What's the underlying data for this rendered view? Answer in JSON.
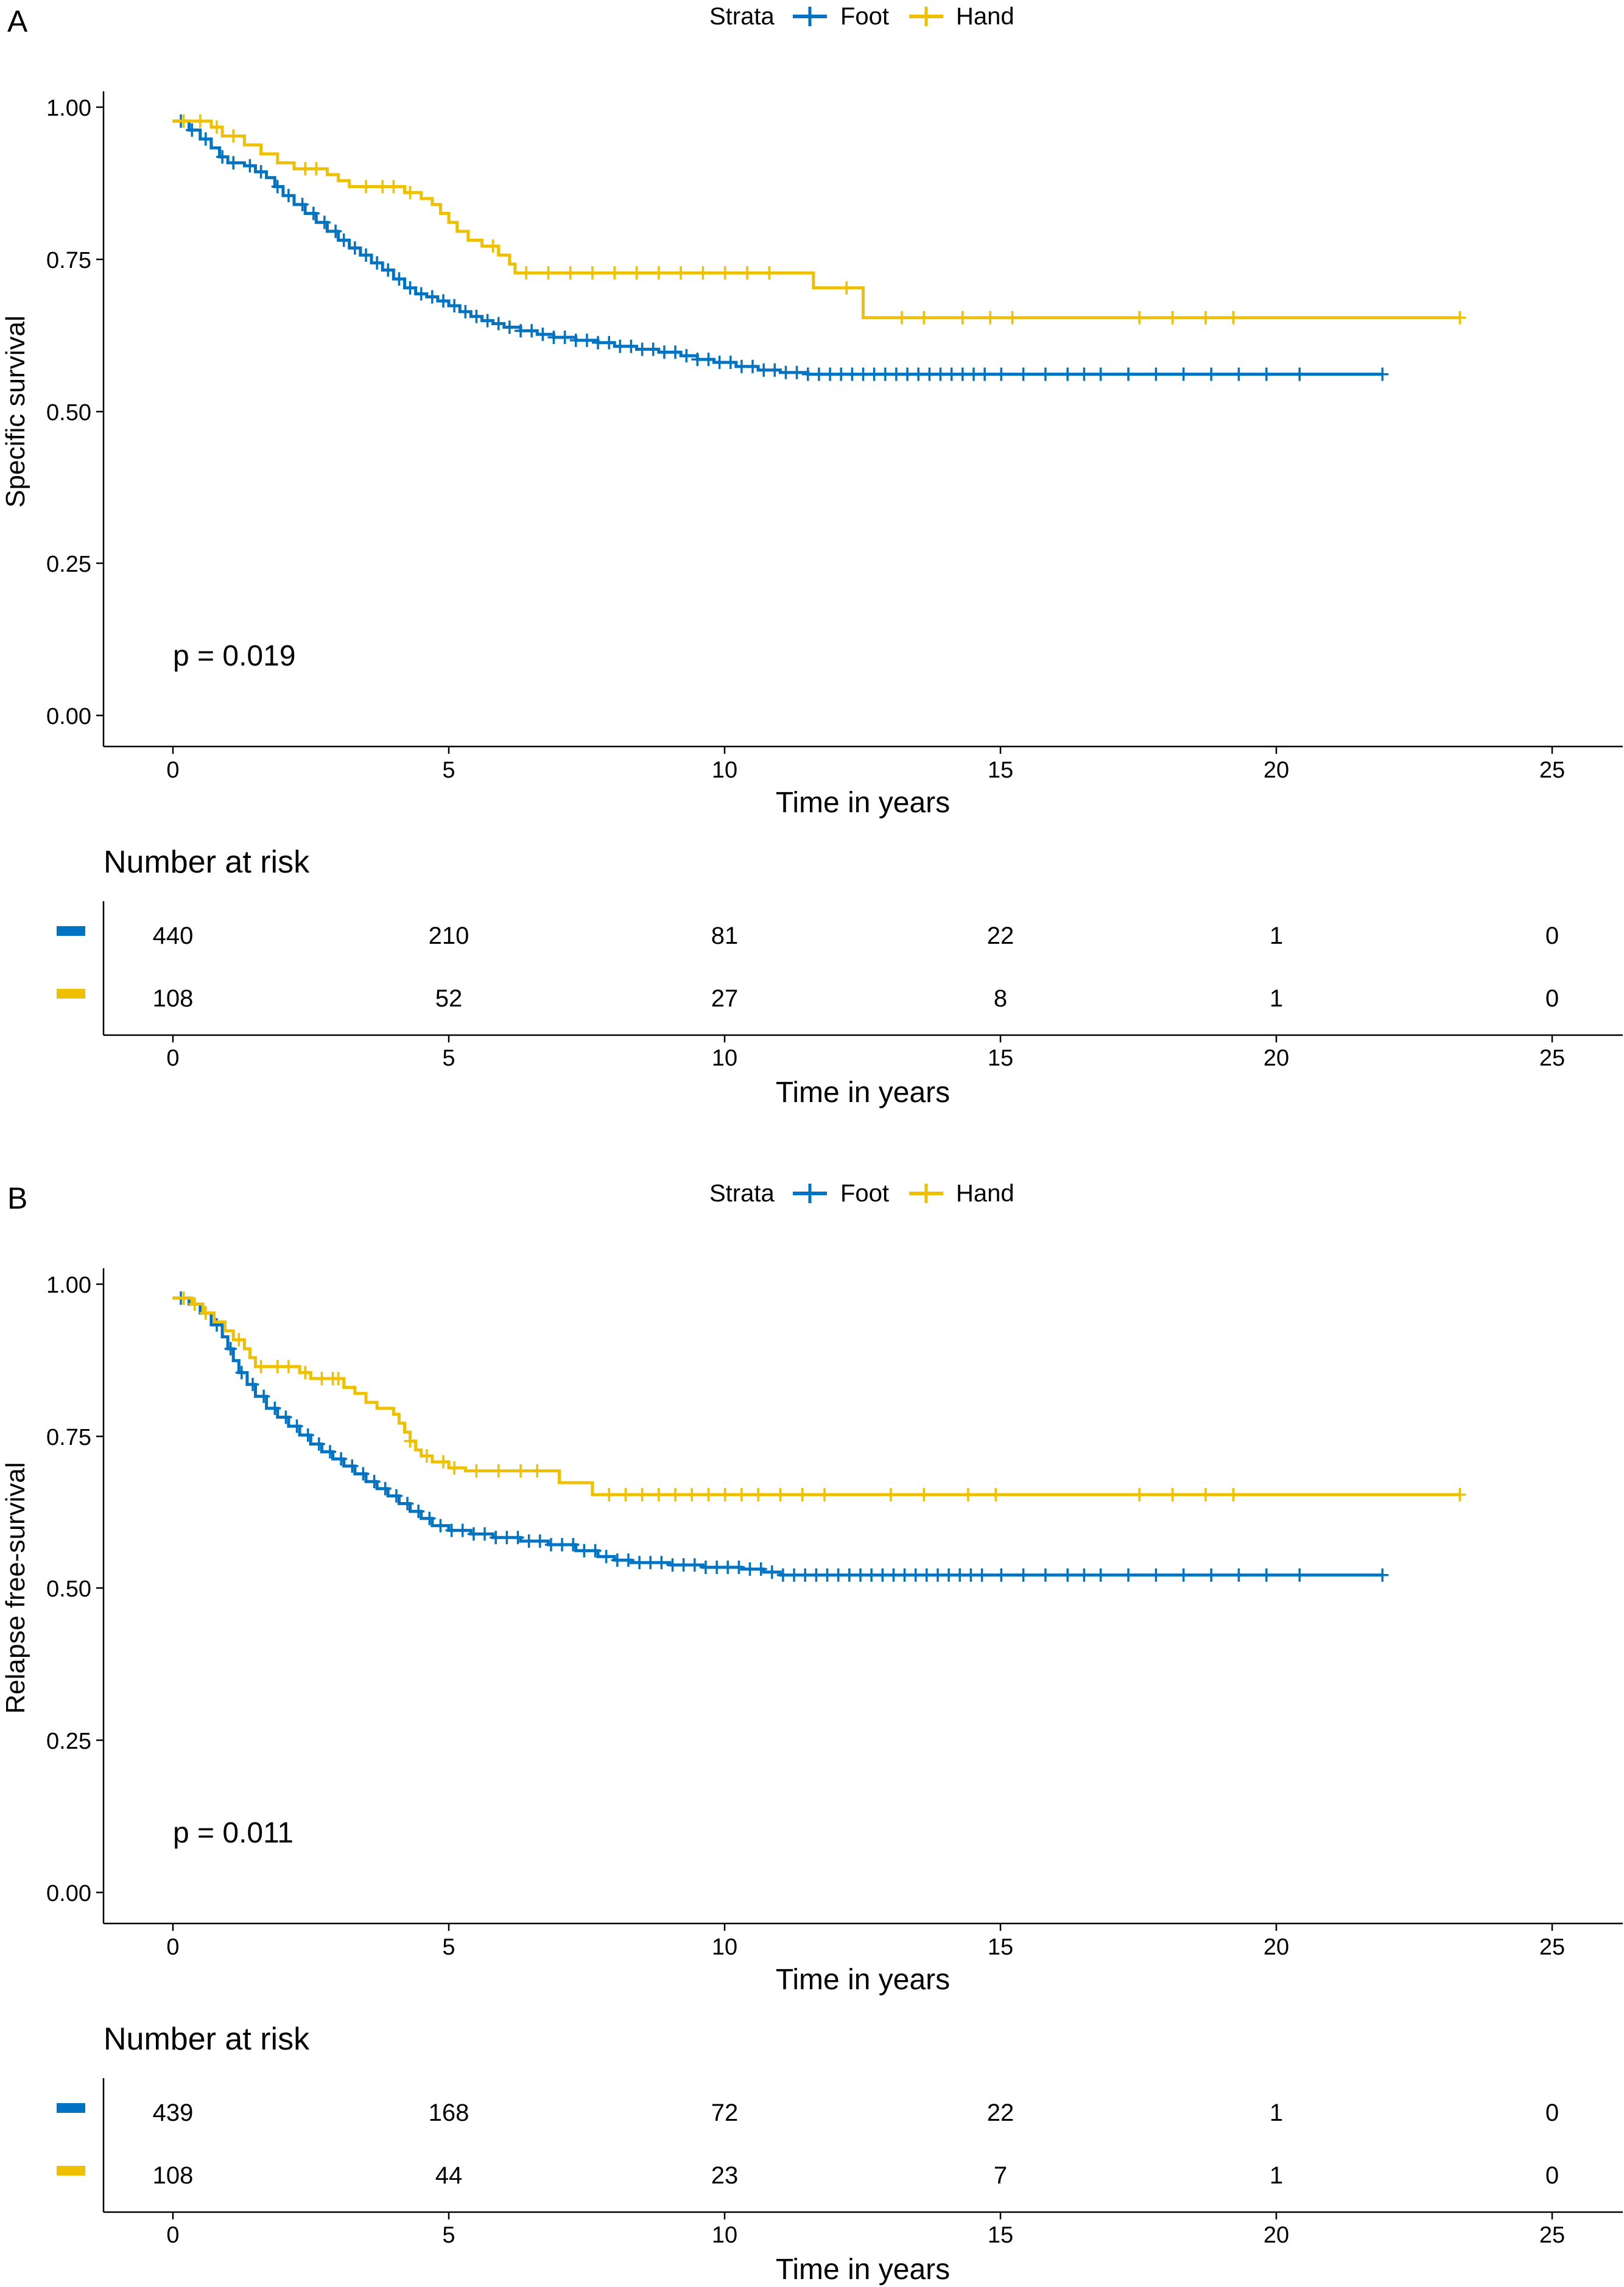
{
  "colors": {
    "foot": "#0073C2",
    "hand": "#EFC000",
    "axis": "#000000"
  },
  "chart_data": [
    {
      "type": "line",
      "panel_label": "A",
      "xlabel": "Time in years",
      "ylabel": "Specific survival",
      "legend_title": "Strata",
      "legend_position": "top",
      "xlim": [
        -1.25,
        26.25
      ],
      "ylim": [
        -0.05,
        1.05
      ],
      "x_ticks": [
        "0",
        "5",
        "10",
        "15",
        "20",
        "25"
      ],
      "y_ticks": [
        "0.00",
        "0.25",
        "0.50",
        "0.75",
        "1.00"
      ],
      "pvalue": "p = 0.019",
      "series": [
        {
          "name": "Foot",
          "color": "#0073C2",
          "steps": [
            [
              0,
              1.0
            ],
            [
              0.3,
              0.985
            ],
            [
              0.5,
              0.97
            ],
            [
              0.7,
              0.955
            ],
            [
              0.85,
              0.94
            ],
            [
              1.0,
              0.93
            ],
            [
              1.3,
              0.925
            ],
            [
              1.5,
              0.915
            ],
            [
              1.7,
              0.905
            ],
            [
              1.85,
              0.89
            ],
            [
              2.0,
              0.875
            ],
            [
              2.2,
              0.86
            ],
            [
              2.4,
              0.845
            ],
            [
              2.6,
              0.83
            ],
            [
              2.8,
              0.815
            ],
            [
              3.0,
              0.8
            ],
            [
              3.2,
              0.787
            ],
            [
              3.4,
              0.775
            ],
            [
              3.6,
              0.762
            ],
            [
              3.8,
              0.75
            ],
            [
              4.0,
              0.735
            ],
            [
              4.2,
              0.72
            ],
            [
              4.4,
              0.71
            ],
            [
              4.6,
              0.705
            ],
            [
              4.8,
              0.698
            ],
            [
              5.0,
              0.69
            ],
            [
              5.2,
              0.68
            ],
            [
              5.4,
              0.672
            ],
            [
              5.6,
              0.665
            ],
            [
              5.8,
              0.66
            ],
            [
              6.0,
              0.654
            ],
            [
              6.3,
              0.648
            ],
            [
              6.6,
              0.642
            ],
            [
              6.9,
              0.637
            ],
            [
              7.3,
              0.632
            ],
            [
              7.7,
              0.628
            ],
            [
              8.0,
              0.622
            ],
            [
              8.4,
              0.617
            ],
            [
              8.8,
              0.612
            ],
            [
              9.2,
              0.606
            ],
            [
              9.5,
              0.6
            ],
            [
              9.8,
              0.595
            ],
            [
              10.2,
              0.588
            ],
            [
              10.6,
              0.582
            ],
            [
              11.0,
              0.578
            ],
            [
              11.5,
              0.575
            ],
            [
              21.9,
              0.575
            ]
          ],
          "censors": [
            0.15,
            0.35,
            0.6,
            0.9,
            1.1,
            1.4,
            1.6,
            1.9,
            2.1,
            2.35,
            2.55,
            2.75,
            2.95,
            3.1,
            3.3,
            3.5,
            3.7,
            3.9,
            4.1,
            4.3,
            4.5,
            4.7,
            4.9,
            5.1,
            5.3,
            5.5,
            5.7,
            5.9,
            6.1,
            6.3,
            6.5,
            6.7,
            6.9,
            7.1,
            7.3,
            7.5,
            7.7,
            7.9,
            8.1,
            8.3,
            8.5,
            8.7,
            8.9,
            9.1,
            9.3,
            9.5,
            9.7,
            9.9,
            10.1,
            10.3,
            10.5,
            10.7,
            10.9,
            11.1,
            11.3,
            11.5,
            11.7,
            11.9,
            12.1,
            12.3,
            12.5,
            12.7,
            12.9,
            13.1,
            13.3,
            13.5,
            13.7,
            13.9,
            14.1,
            14.3,
            14.5,
            14.7,
            15.0,
            15.4,
            15.8,
            16.2,
            16.5,
            16.8,
            17.3,
            17.8,
            18.3,
            18.8,
            19.3,
            19.8,
            20.4,
            21.9
          ]
        },
        {
          "name": "Hand",
          "color": "#EFC000",
          "steps": [
            [
              0,
              1.0
            ],
            [
              0.7,
              0.99
            ],
            [
              0.9,
              0.975
            ],
            [
              1.3,
              0.96
            ],
            [
              1.6,
              0.945
            ],
            [
              1.9,
              0.93
            ],
            [
              2.2,
              0.92
            ],
            [
              2.8,
              0.91
            ],
            [
              3.0,
              0.9
            ],
            [
              3.2,
              0.89
            ],
            [
              4.2,
              0.88
            ],
            [
              4.5,
              0.87
            ],
            [
              4.7,
              0.86
            ],
            [
              4.85,
              0.845
            ],
            [
              5.0,
              0.83
            ],
            [
              5.15,
              0.815
            ],
            [
              5.35,
              0.8
            ],
            [
              5.6,
              0.79
            ],
            [
              5.9,
              0.775
            ],
            [
              6.1,
              0.76
            ],
            [
              6.2,
              0.745
            ],
            [
              11.6,
              0.72
            ],
            [
              12.5,
              0.67
            ],
            [
              23.3,
              0.67
            ]
          ],
          "censors": [
            0.2,
            0.5,
            0.8,
            1.1,
            2.4,
            2.6,
            3.5,
            3.8,
            4.0,
            4.3,
            5.8,
            6.4,
            6.8,
            7.2,
            7.6,
            8.0,
            8.4,
            8.8,
            9.2,
            9.6,
            10.0,
            10.4,
            10.8,
            12.2,
            13.2,
            13.6,
            14.3,
            14.8,
            15.2,
            17.5,
            18.1,
            18.7,
            19.2,
            23.3
          ]
        }
      ],
      "risk_table": {
        "title": "Number at risk",
        "times": [
          0,
          5,
          10,
          15,
          20,
          25
        ],
        "rows": [
          {
            "strata": "Foot",
            "color": "#0073C2",
            "values": [
              "440",
              "210",
              "81",
              "22",
              "1",
              "0"
            ]
          },
          {
            "strata": "Hand",
            "color": "#EFC000",
            "values": [
              "108",
              "52",
              "27",
              "8",
              "1",
              "0"
            ]
          }
        ],
        "xlabel": "Time in years",
        "x_ticks": [
          "0",
          "5",
          "10",
          "15",
          "20",
          "25"
        ]
      }
    },
    {
      "type": "line",
      "panel_label": "B",
      "xlabel": "Time in years",
      "ylabel": "Relapse free-survival",
      "legend_title": "Strata",
      "legend_position": "top",
      "xlim": [
        -1.25,
        26.25
      ],
      "ylim": [
        -0.05,
        1.05
      ],
      "x_ticks": [
        "0",
        "5",
        "10",
        "15",
        "20",
        "25"
      ],
      "y_ticks": [
        "0.00",
        "0.25",
        "0.50",
        "0.75",
        "1.00"
      ],
      "pvalue": "p = 0.011",
      "series": [
        {
          "name": "Foot",
          "color": "#0073C2",
          "steps": [
            [
              0,
              1.0
            ],
            [
              0.3,
              0.99
            ],
            [
              0.5,
              0.975
            ],
            [
              0.7,
              0.955
            ],
            [
              0.9,
              0.935
            ],
            [
              1.0,
              0.915
            ],
            [
              1.1,
              0.895
            ],
            [
              1.2,
              0.875
            ],
            [
              1.35,
              0.855
            ],
            [
              1.5,
              0.835
            ],
            [
              1.7,
              0.815
            ],
            [
              1.9,
              0.8
            ],
            [
              2.1,
              0.785
            ],
            [
              2.3,
              0.77
            ],
            [
              2.5,
              0.755
            ],
            [
              2.7,
              0.742
            ],
            [
              2.9,
              0.73
            ],
            [
              3.1,
              0.718
            ],
            [
              3.3,
              0.705
            ],
            [
              3.5,
              0.692
            ],
            [
              3.7,
              0.68
            ],
            [
              3.9,
              0.668
            ],
            [
              4.1,
              0.655
            ],
            [
              4.3,
              0.642
            ],
            [
              4.5,
              0.63
            ],
            [
              4.7,
              0.618
            ],
            [
              5.0,
              0.61
            ],
            [
              5.4,
              0.604
            ],
            [
              5.8,
              0.598
            ],
            [
              6.3,
              0.592
            ],
            [
              6.8,
              0.586
            ],
            [
              7.3,
              0.576
            ],
            [
              7.7,
              0.566
            ],
            [
              8.0,
              0.56
            ],
            [
              8.3,
              0.556
            ],
            [
              9.0,
              0.552
            ],
            [
              9.6,
              0.548
            ],
            [
              10.3,
              0.545
            ],
            [
              10.7,
              0.54
            ],
            [
              11.0,
              0.535
            ],
            [
              21.9,
              0.535
            ]
          ],
          "censors": [
            0.15,
            0.4,
            0.6,
            0.8,
            1.05,
            1.25,
            1.45,
            1.65,
            1.85,
            2.05,
            2.25,
            2.45,
            2.65,
            2.85,
            3.05,
            3.25,
            3.45,
            3.65,
            3.85,
            4.05,
            4.25,
            4.45,
            4.65,
            4.85,
            5.05,
            5.25,
            5.45,
            5.65,
            5.85,
            6.05,
            6.25,
            6.45,
            6.65,
            6.85,
            7.05,
            7.25,
            7.45,
            7.65,
            7.85,
            8.05,
            8.25,
            8.45,
            8.65,
            8.85,
            9.05,
            9.25,
            9.45,
            9.65,
            9.85,
            10.05,
            10.25,
            10.45,
            10.65,
            10.85,
            11.05,
            11.25,
            11.45,
            11.65,
            11.85,
            12.05,
            12.25,
            12.45,
            12.65,
            12.85,
            13.05,
            13.25,
            13.45,
            13.65,
            13.85,
            14.05,
            14.25,
            14.45,
            14.65,
            15.0,
            15.4,
            15.8,
            16.2,
            16.5,
            16.8,
            17.3,
            17.8,
            18.3,
            18.8,
            19.3,
            19.8,
            20.4,
            21.9
          ]
        },
        {
          "name": "Hand",
          "color": "#EFC000",
          "steps": [
            [
              0,
              1.0
            ],
            [
              0.35,
              0.99
            ],
            [
              0.55,
              0.975
            ],
            [
              0.75,
              0.96
            ],
            [
              0.95,
              0.945
            ],
            [
              1.1,
              0.93
            ],
            [
              1.3,
              0.915
            ],
            [
              1.4,
              0.9
            ],
            [
              1.5,
              0.885
            ],
            [
              2.3,
              0.875
            ],
            [
              2.5,
              0.865
            ],
            [
              3.1,
              0.85
            ],
            [
              3.3,
              0.84
            ],
            [
              3.5,
              0.825
            ],
            [
              3.7,
              0.815
            ],
            [
              4.0,
              0.805
            ],
            [
              4.1,
              0.79
            ],
            [
              4.2,
              0.775
            ],
            [
              4.3,
              0.76
            ],
            [
              4.4,
              0.745
            ],
            [
              4.5,
              0.735
            ],
            [
              4.7,
              0.725
            ],
            [
              5.0,
              0.715
            ],
            [
              5.3,
              0.71
            ],
            [
              7.0,
              0.69
            ],
            [
              7.6,
              0.67
            ],
            [
              23.3,
              0.67
            ]
          ],
          "censors": [
            0.2,
            0.4,
            0.6,
            1.2,
            1.6,
            1.9,
            2.1,
            2.4,
            2.7,
            2.9,
            3.0,
            4.3,
            4.6,
            4.9,
            5.1,
            5.5,
            5.9,
            6.3,
            6.6,
            7.9,
            8.2,
            8.5,
            8.8,
            9.1,
            9.4,
            9.7,
            10.0,
            10.3,
            10.6,
            11.0,
            11.4,
            11.8,
            13.0,
            13.6,
            14.4,
            14.9,
            17.5,
            18.1,
            18.7,
            19.2,
            23.3
          ]
        }
      ],
      "risk_table": {
        "title": "Number at risk",
        "times": [
          0,
          5,
          10,
          15,
          20,
          25
        ],
        "rows": [
          {
            "strata": "Foot",
            "color": "#0073C2",
            "values": [
              "439",
              "168",
              "72",
              "22",
              "1",
              "0"
            ]
          },
          {
            "strata": "Hand",
            "color": "#EFC000",
            "values": [
              "108",
              "44",
              "23",
              "7",
              "1",
              "0"
            ]
          }
        ],
        "xlabel": "Time in years",
        "x_ticks": [
          "0",
          "5",
          "10",
          "15",
          "20",
          "25"
        ]
      }
    }
  ]
}
